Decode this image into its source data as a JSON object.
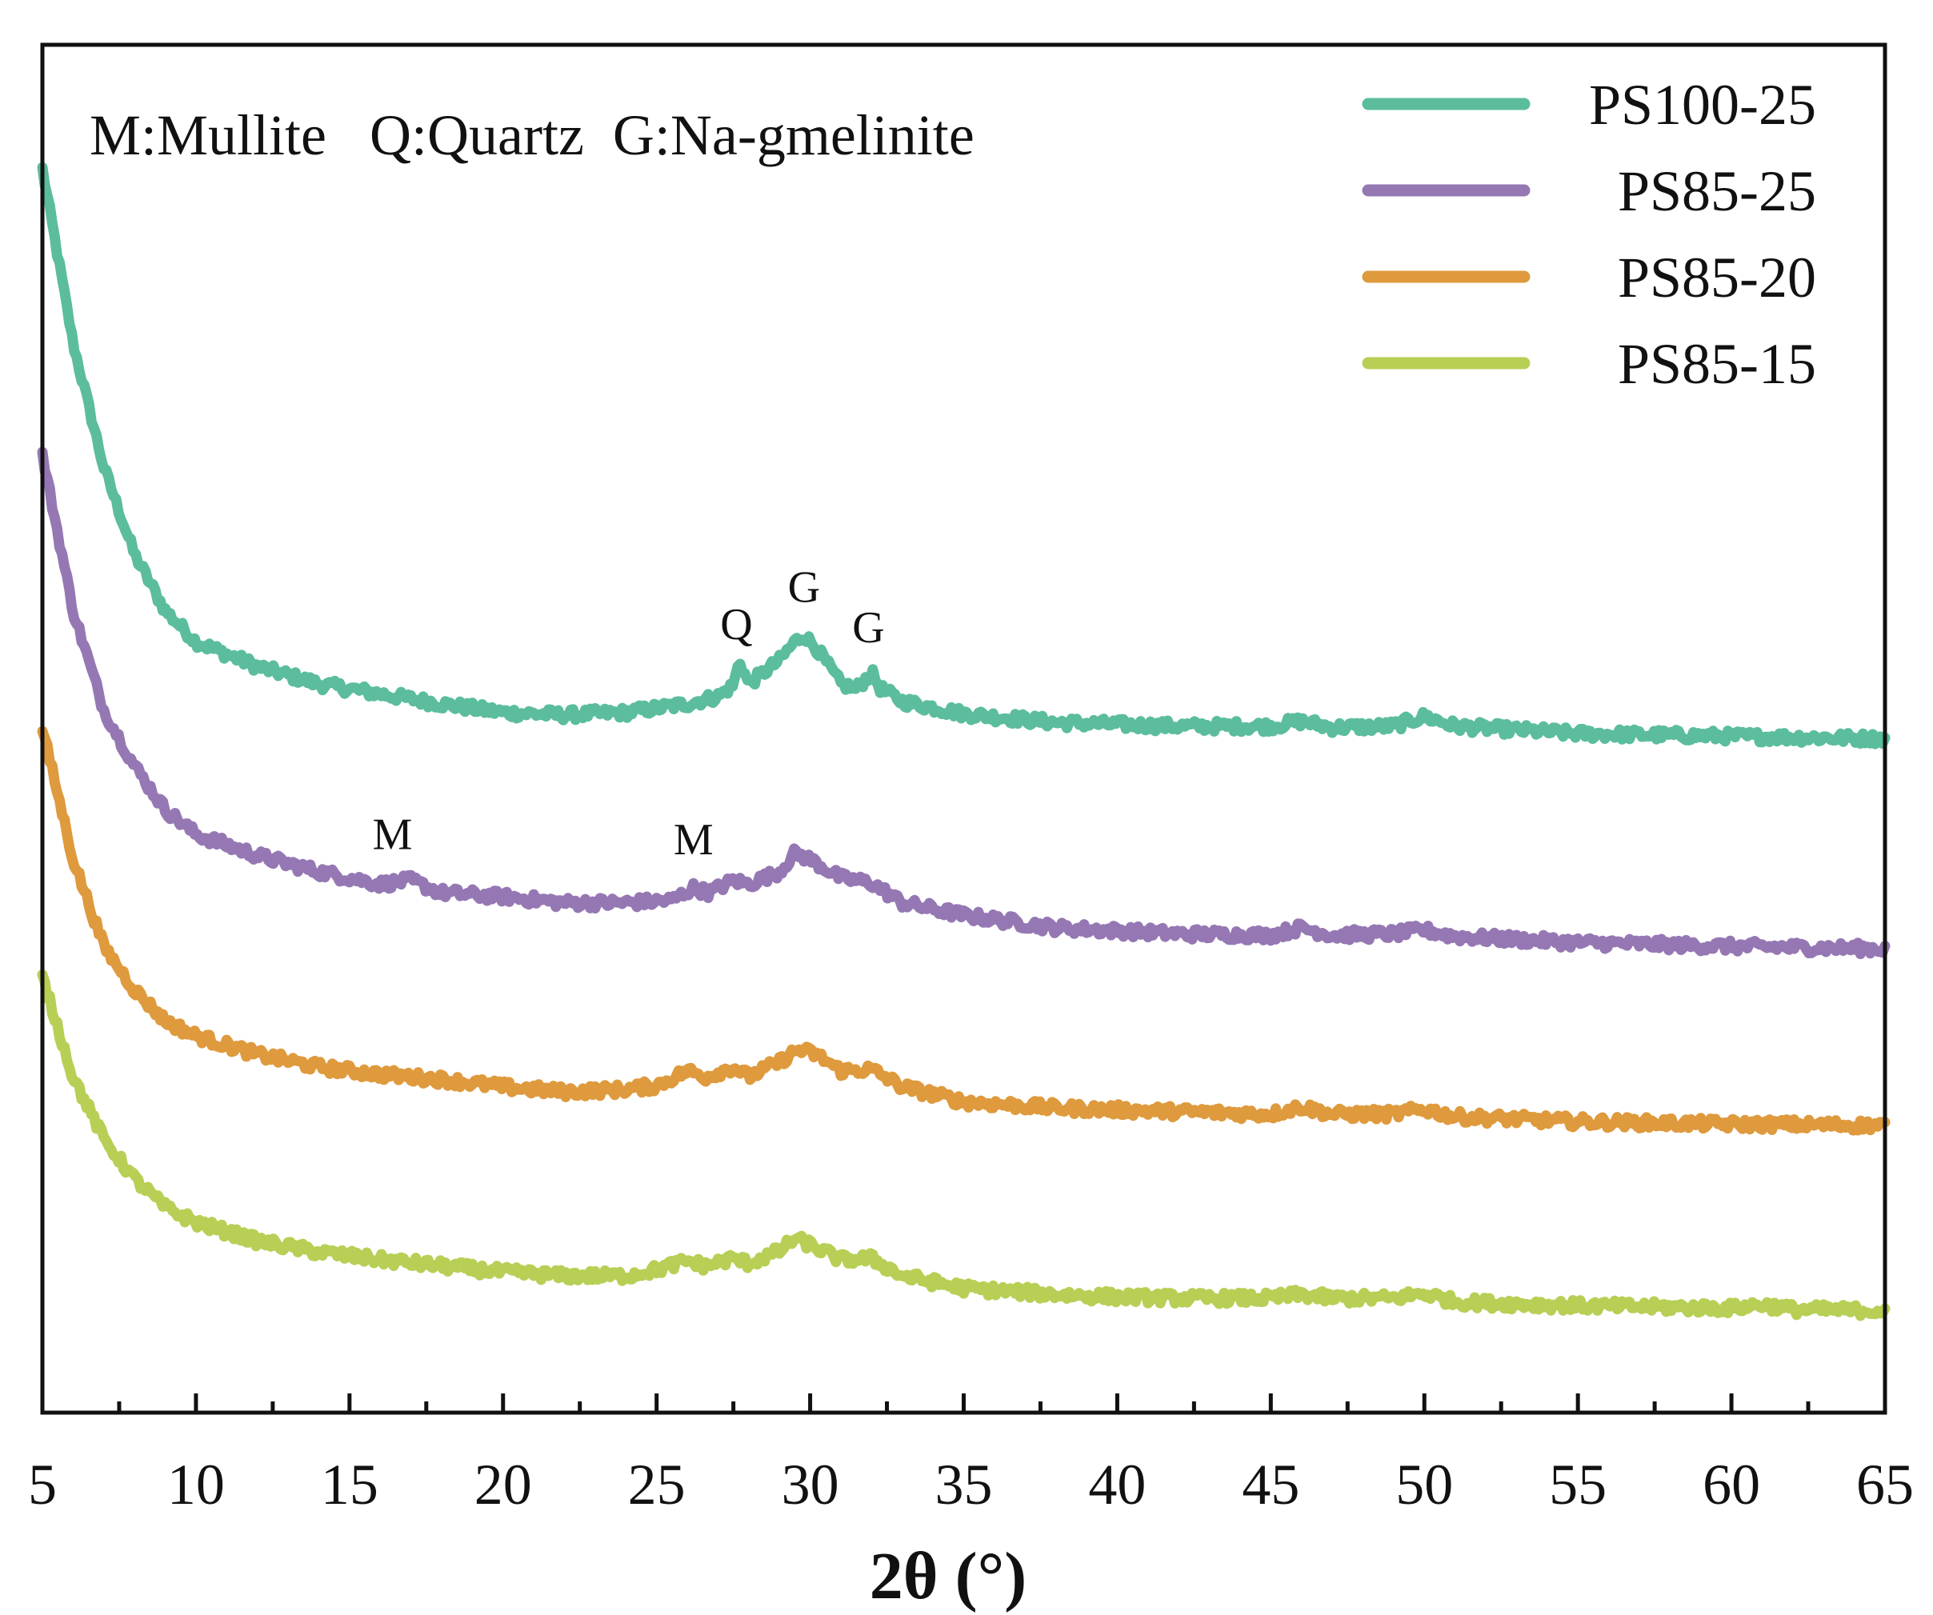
{
  "chart_data": {
    "type": "line",
    "title": "",
    "xlabel": "2θ (°)",
    "ylabel": "",
    "xlim": [
      5,
      65
    ],
    "xticks": [
      5,
      10,
      15,
      20,
      25,
      30,
      35,
      40,
      45,
      50,
      55,
      60,
      65
    ],
    "yticks_shown": false,
    "legend_position": "top-right",
    "annotation": "M:Mullite   Q:Quartz  G:Na-gmelinite",
    "series": [
      {
        "name": "PS100-25",
        "color": "#5bbd9d",
        "points": [
          [
            5,
            100
          ],
          [
            6,
            86
          ],
          [
            7,
            76
          ],
          [
            8,
            69
          ],
          [
            9,
            64.5
          ],
          [
            10,
            62
          ],
          [
            12,
            60
          ],
          [
            14,
            58.6
          ],
          [
            16,
            57.8
          ],
          [
            18,
            57
          ],
          [
            20,
            56.3
          ],
          [
            22,
            56.1
          ],
          [
            24,
            56.3
          ],
          [
            26,
            57
          ],
          [
            27,
            57.6
          ],
          [
            27.5,
            58.5
          ],
          [
            27.7,
            60.5
          ],
          [
            28,
            58.6
          ],
          [
            29,
            60.5
          ],
          [
            29.5,
            62
          ],
          [
            29.8,
            62.5
          ],
          [
            30.2,
            61.5
          ],
          [
            31,
            58.6
          ],
          [
            31.5,
            58.2
          ],
          [
            32,
            59.5
          ],
          [
            32.3,
            58.2
          ],
          [
            33,
            57.2
          ],
          [
            35,
            56.2
          ],
          [
            38,
            55.5
          ],
          [
            42,
            55.2
          ],
          [
            45,
            55.2
          ],
          [
            46,
            55.6
          ],
          [
            47,
            55.1
          ],
          [
            49,
            55.2
          ],
          [
            50,
            56
          ],
          [
            51,
            55.2
          ],
          [
            55,
            54.6
          ],
          [
            60,
            54.4
          ],
          [
            65,
            54.2
          ]
        ],
        "peaks": [
          {
            "label": "Q",
            "x": 27.6
          },
          {
            "label": "G",
            "x": 29.8
          },
          {
            "label": "G",
            "x": 31.9
          }
        ]
      },
      {
        "name": "PS85-25",
        "color": "#9578b3",
        "points": [
          [
            5,
            77
          ],
          [
            6,
            64.5
          ],
          [
            7,
            56.5
          ],
          [
            8,
            52
          ],
          [
            9,
            48.5
          ],
          [
            10,
            46.5
          ],
          [
            12,
            44.8
          ],
          [
            14,
            43.5
          ],
          [
            16,
            42.5
          ],
          [
            17,
            42.8
          ],
          [
            18,
            41.8
          ],
          [
            20,
            41.5
          ],
          [
            22,
            41
          ],
          [
            24,
            41
          ],
          [
            25.5,
            41.2
          ],
          [
            26.2,
            42.2
          ],
          [
            26.7,
            41.8
          ],
          [
            27.5,
            42.8
          ],
          [
            28,
            42.5
          ],
          [
            29,
            43.5
          ],
          [
            29.5,
            45
          ],
          [
            30,
            44.5
          ],
          [
            31,
            43
          ],
          [
            32,
            42.6
          ],
          [
            33,
            41
          ],
          [
            35,
            40
          ],
          [
            38,
            39
          ],
          [
            42,
            38.5
          ],
          [
            45,
            38.4
          ],
          [
            46,
            39
          ],
          [
            47,
            38.4
          ],
          [
            49,
            38.5
          ],
          [
            50,
            38.8
          ],
          [
            51,
            38.3
          ],
          [
            55,
            37.8
          ],
          [
            60,
            37.5
          ],
          [
            65,
            37.3
          ]
        ],
        "peaks": [
          {
            "label": "M",
            "x": 16.4
          },
          {
            "label": "M",
            "x": 26.2
          }
        ]
      },
      {
        "name": "PS85-20",
        "color": "#de9a3d",
        "points": [
          [
            5,
            55
          ],
          [
            6,
            44.5
          ],
          [
            7,
            37.5
          ],
          [
            8,
            34
          ],
          [
            9,
            31.5
          ],
          [
            10,
            30.3
          ],
          [
            12,
            28.8
          ],
          [
            14,
            27.8
          ],
          [
            16,
            27.2
          ],
          [
            18,
            26.8
          ],
          [
            20,
            26.2
          ],
          [
            22,
            25.8
          ],
          [
            24,
            26
          ],
          [
            25,
            26.3
          ],
          [
            26,
            27.5
          ],
          [
            26.6,
            27
          ],
          [
            27.5,
            27.8
          ],
          [
            28,
            27
          ],
          [
            29,
            28.2
          ],
          [
            29.6,
            29.2
          ],
          [
            30.2,
            28.8
          ],
          [
            31,
            27.5
          ],
          [
            32,
            27.6
          ],
          [
            33,
            26.2
          ],
          [
            35,
            25
          ],
          [
            38,
            24.5
          ],
          [
            42,
            24.2
          ],
          [
            45,
            24
          ],
          [
            46,
            24.6
          ],
          [
            47,
            24
          ],
          [
            49,
            24
          ],
          [
            50,
            24.4
          ],
          [
            51,
            23.8
          ],
          [
            55,
            23.4
          ],
          [
            60,
            23.2
          ],
          [
            65,
            23.1
          ]
        ],
        "peaks": []
      },
      {
        "name": "PS85-15",
        "color": "#b7cf55",
        "points": [
          [
            5,
            35
          ],
          [
            6,
            27
          ],
          [
            7,
            22
          ],
          [
            8,
            18.8
          ],
          [
            9,
            16.5
          ],
          [
            10,
            15.3
          ],
          [
            12,
            13.8
          ],
          [
            14,
            12.9
          ],
          [
            16,
            12.3
          ],
          [
            18,
            11.8
          ],
          [
            20,
            11.3
          ],
          [
            22,
            11
          ],
          [
            24,
            11
          ],
          [
            25,
            11.5
          ],
          [
            26,
            12.2
          ],
          [
            26.6,
            11.8
          ],
          [
            27.5,
            12.4
          ],
          [
            28,
            12
          ],
          [
            29,
            13
          ],
          [
            29.5,
            14
          ],
          [
            30,
            13.5
          ],
          [
            31,
            12.3
          ],
          [
            32,
            12.4
          ],
          [
            33,
            11
          ],
          [
            35,
            10
          ],
          [
            38,
            9.5
          ],
          [
            40,
            9.3
          ],
          [
            42,
            9.2
          ],
          [
            45,
            9.2
          ],
          [
            46,
            9.5
          ],
          [
            47,
            9.2
          ],
          [
            49,
            9.2
          ],
          [
            50,
            9.6
          ],
          [
            51,
            8.9
          ],
          [
            55,
            8.6
          ],
          [
            60,
            8.4
          ],
          [
            61,
            8.7
          ],
          [
            62,
            8.3
          ],
          [
            65,
            8.2
          ]
        ],
        "peaks": []
      }
    ]
  }
}
